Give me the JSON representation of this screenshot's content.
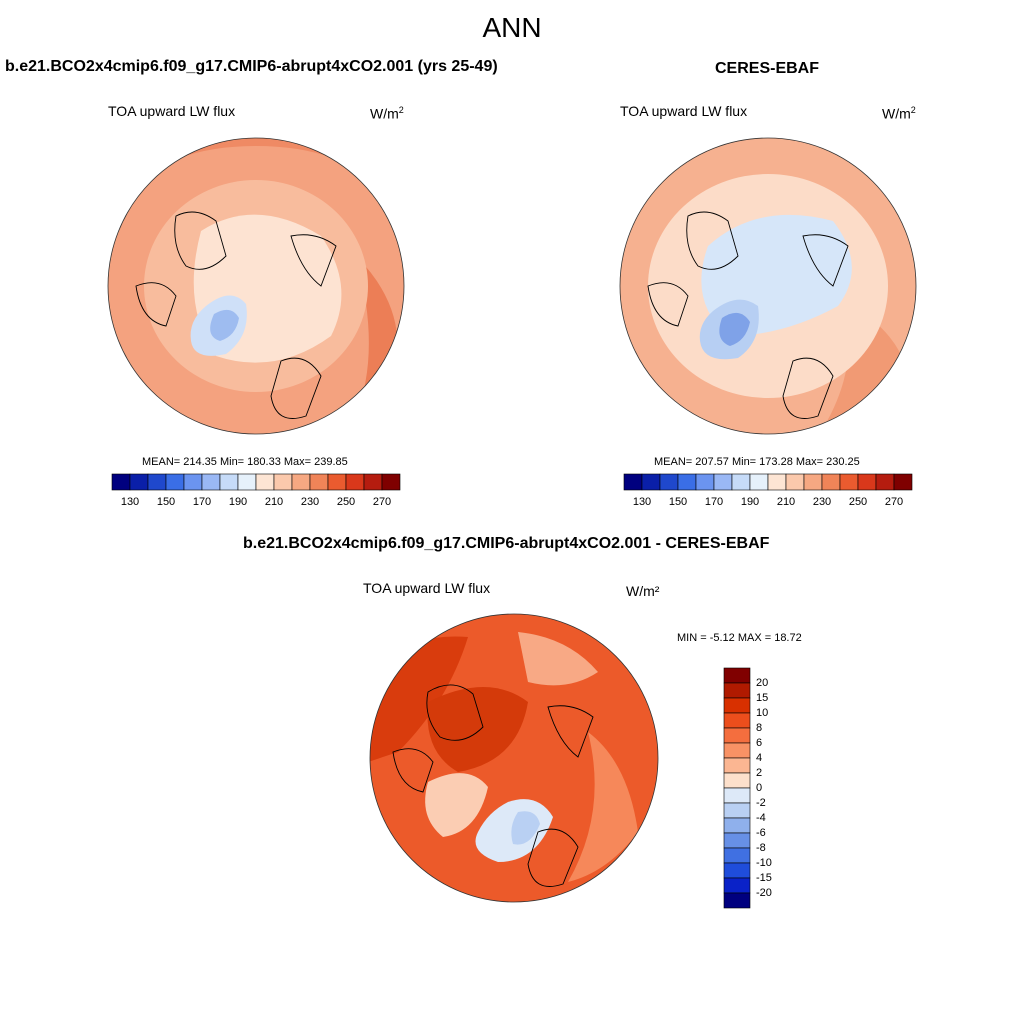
{
  "figure": {
    "title": "ANN"
  },
  "panels": [
    {
      "title": "b.e21.BCO2x4cmip6.f09_g17.CMIP6-abrupt4xCO2.001 (yrs 25-49)",
      "variable": "TOA upward LW flux",
      "units_base": "W/m",
      "units_exp": "2",
      "stats": "MEAN= 214.35  Min= 180.33  Max= 239.85"
    },
    {
      "title": "CERES-EBAF",
      "variable": "TOA upward LW flux",
      "units_base": "W/m",
      "units_exp": "2",
      "stats": "MEAN= 207.57  Min= 173.28  Max= 230.25"
    },
    {
      "title": "b.e21.BCO2x4cmip6.f09_g17.CMIP6-abrupt4xCO2.001 - CERES-EBAF",
      "variable": "TOA upward LW flux",
      "units": "W/m²",
      "stats": "MIN =  -5.12 MAX =  18.72"
    }
  ],
  "chart_data": [
    {
      "type": "heatmap",
      "projection": "north-polar-stereographic",
      "title": "b.e21.BCO2x4cmip6.f09_g17.CMIP6-abrupt4xCO2.001 (yrs 25-49)",
      "variable": "TOA upward LW flux",
      "units": "W/m2",
      "mean": 214.35,
      "min": 180.33,
      "max": 239.85,
      "colorbar": {
        "orientation": "horizontal",
        "levels": [
          120,
          130,
          140,
          150,
          160,
          170,
          180,
          190,
          200,
          210,
          220,
          230,
          240,
          250,
          260,
          270,
          280
        ],
        "tick_labels": [
          "130",
          "150",
          "170",
          "190",
          "210",
          "230",
          "250",
          "270"
        ],
        "colors": [
          "#00007f",
          "#0a1fa8",
          "#1f48cc",
          "#3a6ee6",
          "#6b94f0",
          "#9ab8f5",
          "#c6dbf8",
          "#e6f1fb",
          "#fde5d4",
          "#fbc9ac",
          "#f6a882",
          "#f08458",
          "#ea5b2f",
          "#d9381b",
          "#b51c0f",
          "#7f0000"
        ]
      }
    },
    {
      "type": "heatmap",
      "projection": "north-polar-stereographic",
      "title": "CERES-EBAF",
      "variable": "TOA upward LW flux",
      "units": "W/m2",
      "mean": 207.57,
      "min": 173.28,
      "max": 230.25,
      "colorbar": {
        "orientation": "horizontal",
        "levels": [
          120,
          130,
          140,
          150,
          160,
          170,
          180,
          190,
          200,
          210,
          220,
          230,
          240,
          250,
          260,
          270,
          280
        ],
        "tick_labels": [
          "130",
          "150",
          "170",
          "190",
          "210",
          "230",
          "250",
          "270"
        ],
        "colors": [
          "#00007f",
          "#0a1fa8",
          "#1f48cc",
          "#3a6ee6",
          "#6b94f0",
          "#9ab8f5",
          "#c6dbf8",
          "#e6f1fb",
          "#fde5d4",
          "#fbc9ac",
          "#f6a882",
          "#f08458",
          "#ea5b2f",
          "#d9381b",
          "#b51c0f",
          "#7f0000"
        ]
      }
    },
    {
      "type": "heatmap",
      "projection": "north-polar-stereographic",
      "title": "b.e21.BCO2x4cmip6.f09_g17.CMIP6-abrupt4xCO2.001 - CERES-EBAF",
      "variable": "TOA upward LW flux",
      "units": "W/m2",
      "min": -5.12,
      "max": 18.72,
      "colorbar": {
        "orientation": "vertical",
        "levels": [
          20,
          15,
          10,
          8,
          6,
          4,
          2,
          0,
          -2,
          -4,
          -6,
          -8,
          -10,
          -15,
          -20
        ],
        "tick_labels": [
          "20",
          "15",
          "10",
          "8",
          "6",
          "4",
          "2",
          "0",
          "-2",
          "-4",
          "-6",
          "-8",
          "-10",
          "-15",
          "-20"
        ],
        "colors": [
          "#800000",
          "#b01a00",
          "#d83000",
          "#ec4e1c",
          "#f46e3e",
          "#f89265",
          "#fbb692",
          "#fde0cb",
          "#dde9f8",
          "#b9d0f3",
          "#8fb0ec",
          "#6790e6",
          "#4070e2",
          "#1f4ddb",
          "#0a22c8",
          "#00007f"
        ]
      }
    }
  ]
}
